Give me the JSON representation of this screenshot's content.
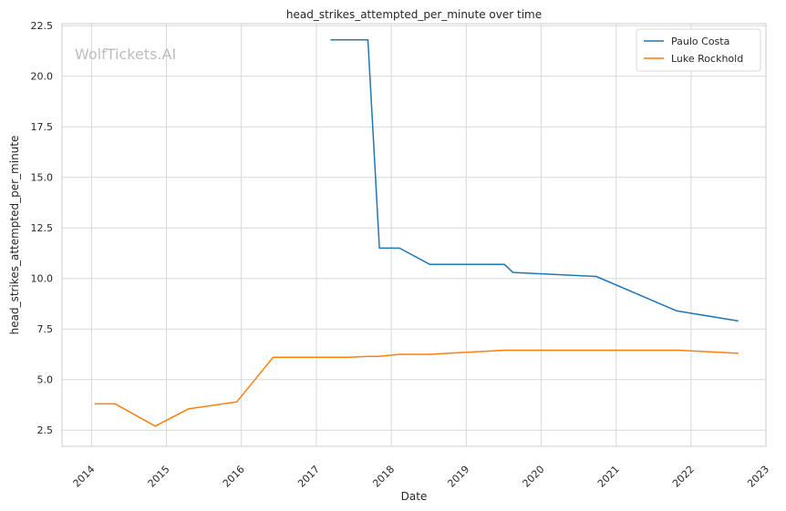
{
  "chart_data": {
    "type": "line",
    "title": "head_strikes_attempted_per_minute over time",
    "xlabel": "Date",
    "ylabel": "head_strikes_attempted_per_minute",
    "watermark": "WolfTickets.AI",
    "xlim": [
      "2013-08-10",
      "2023-01-01"
    ],
    "ylim": [
      1.7,
      22.6
    ],
    "x_ticks": [
      "2014",
      "2015",
      "2016",
      "2017",
      "2018",
      "2019",
      "2020",
      "2021",
      "2022",
      "2023"
    ],
    "y_ticks": [
      "2.5",
      "5.0",
      "7.5",
      "10.0",
      "12.5",
      "15.0",
      "17.5",
      "20.0",
      "22.5"
    ],
    "grid": true,
    "legend_position": "top-right",
    "series": [
      {
        "name": "Paulo Costa",
        "color": "#1f77b4",
        "points": [
          {
            "x": "2017-03-11",
            "y": 21.8
          },
          {
            "x": "2017-09-09",
            "y": 21.8
          },
          {
            "x": "2017-11-04",
            "y": 11.5
          },
          {
            "x": "2018-02-10",
            "y": 11.5
          },
          {
            "x": "2018-07-07",
            "y": 10.7
          },
          {
            "x": "2019-07-06",
            "y": 10.7
          },
          {
            "x": "2019-08-17",
            "y": 10.3
          },
          {
            "x": "2020-09-26",
            "y": 10.1
          },
          {
            "x": "2021-10-23",
            "y": 8.4
          },
          {
            "x": "2022-08-20",
            "y": 7.9
          }
        ]
      },
      {
        "name": "Luke Rockhold",
        "color": "#ff7f0e",
        "points": [
          {
            "x": "2014-01-15",
            "y": 3.8
          },
          {
            "x": "2014-04-26",
            "y": 3.8
          },
          {
            "x": "2014-11-07",
            "y": 2.7
          },
          {
            "x": "2015-04-18",
            "y": 3.55
          },
          {
            "x": "2015-12-10",
            "y": 3.9
          },
          {
            "x": "2016-06-04",
            "y": 6.1
          },
          {
            "x": "2017-06-01",
            "y": 6.1
          },
          {
            "x": "2017-09-16",
            "y": 6.15
          },
          {
            "x": "2017-11-01",
            "y": 6.15
          },
          {
            "x": "2018-02-10",
            "y": 6.25
          },
          {
            "x": "2018-07-07",
            "y": 6.25
          },
          {
            "x": "2019-07-06",
            "y": 6.45
          },
          {
            "x": "2020-09-26",
            "y": 6.45
          },
          {
            "x": "2021-11-01",
            "y": 6.45
          },
          {
            "x": "2022-08-20",
            "y": 6.3
          }
        ]
      }
    ]
  }
}
